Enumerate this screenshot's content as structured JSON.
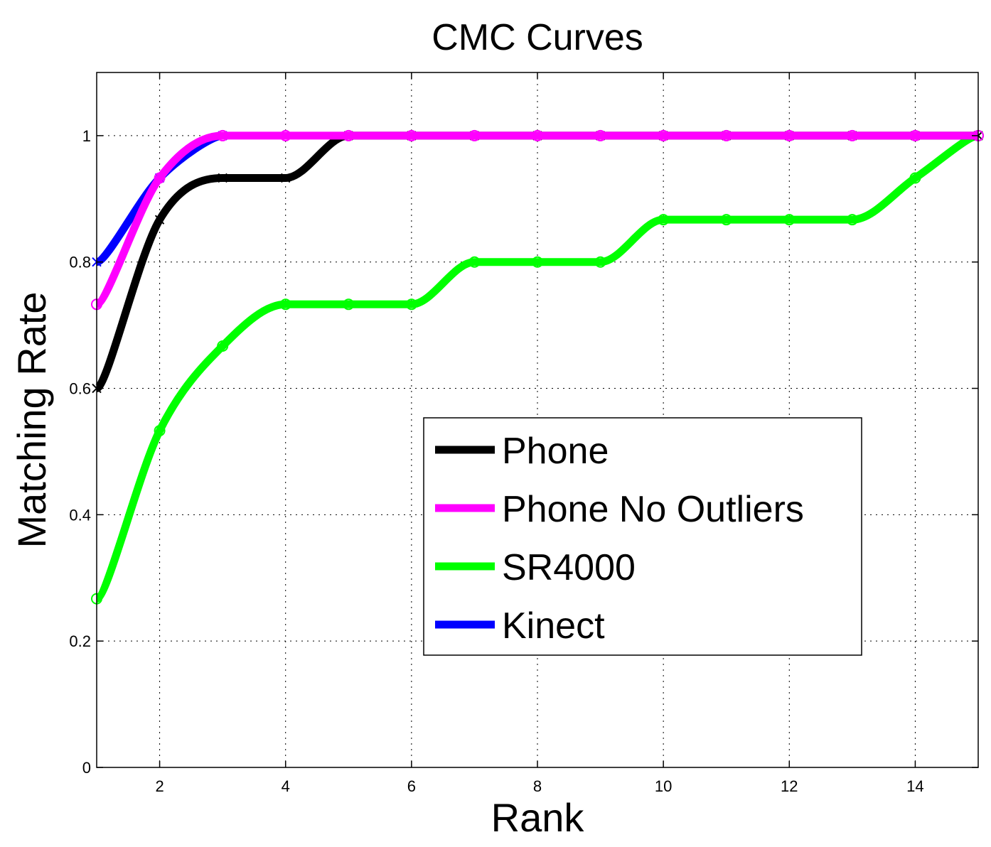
{
  "chart_data": {
    "type": "line",
    "title": "CMC Curves",
    "xlabel": "Rank",
    "ylabel": "Matching Rate",
    "xlim": [
      1,
      15
    ],
    "ylim": [
      0,
      1.1
    ],
    "xticks": [
      2,
      4,
      6,
      8,
      10,
      12,
      14
    ],
    "yticks": [
      0,
      0.2,
      0.4,
      0.6,
      0.8,
      1
    ],
    "ytick_labels": [
      "0",
      "0.2",
      "0.4",
      "0.6",
      "0.8",
      "1"
    ],
    "grid": true,
    "legend_position": "center-right",
    "series": [
      {
        "name": "Phone",
        "color": "#000000",
        "marker": "x",
        "x": [
          1,
          2,
          3,
          4,
          5,
          6,
          7,
          8,
          9,
          10,
          11,
          12,
          13,
          14,
          15
        ],
        "y": [
          0.6,
          0.867,
          0.933,
          0.933,
          1,
          1,
          1,
          1,
          1,
          1,
          1,
          1,
          1,
          1,
          1
        ]
      },
      {
        "name": "Phone No Outliers",
        "color": "#ff00ff",
        "marker": "o",
        "x": [
          1,
          2,
          3,
          4,
          5,
          6,
          7,
          8,
          9,
          10,
          11,
          12,
          13,
          14,
          15
        ],
        "y": [
          0.733,
          0.933,
          1,
          1,
          1,
          1,
          1,
          1,
          1,
          1,
          1,
          1,
          1,
          1,
          1
        ]
      },
      {
        "name": "SR4000",
        "color": "#00ff00",
        "marker": "o",
        "x": [
          1,
          2,
          3,
          4,
          5,
          6,
          7,
          8,
          9,
          10,
          11,
          12,
          13,
          14,
          15
        ],
        "y": [
          0.267,
          0.533,
          0.667,
          0.733,
          0.733,
          0.733,
          0.8,
          0.8,
          0.8,
          0.867,
          0.867,
          0.867,
          0.867,
          0.933,
          1
        ]
      },
      {
        "name": "Kinect",
        "color": "#0000ff",
        "marker": "x",
        "x": [
          1,
          2,
          3
        ],
        "y": [
          0.8,
          0.933,
          1
        ]
      }
    ]
  }
}
